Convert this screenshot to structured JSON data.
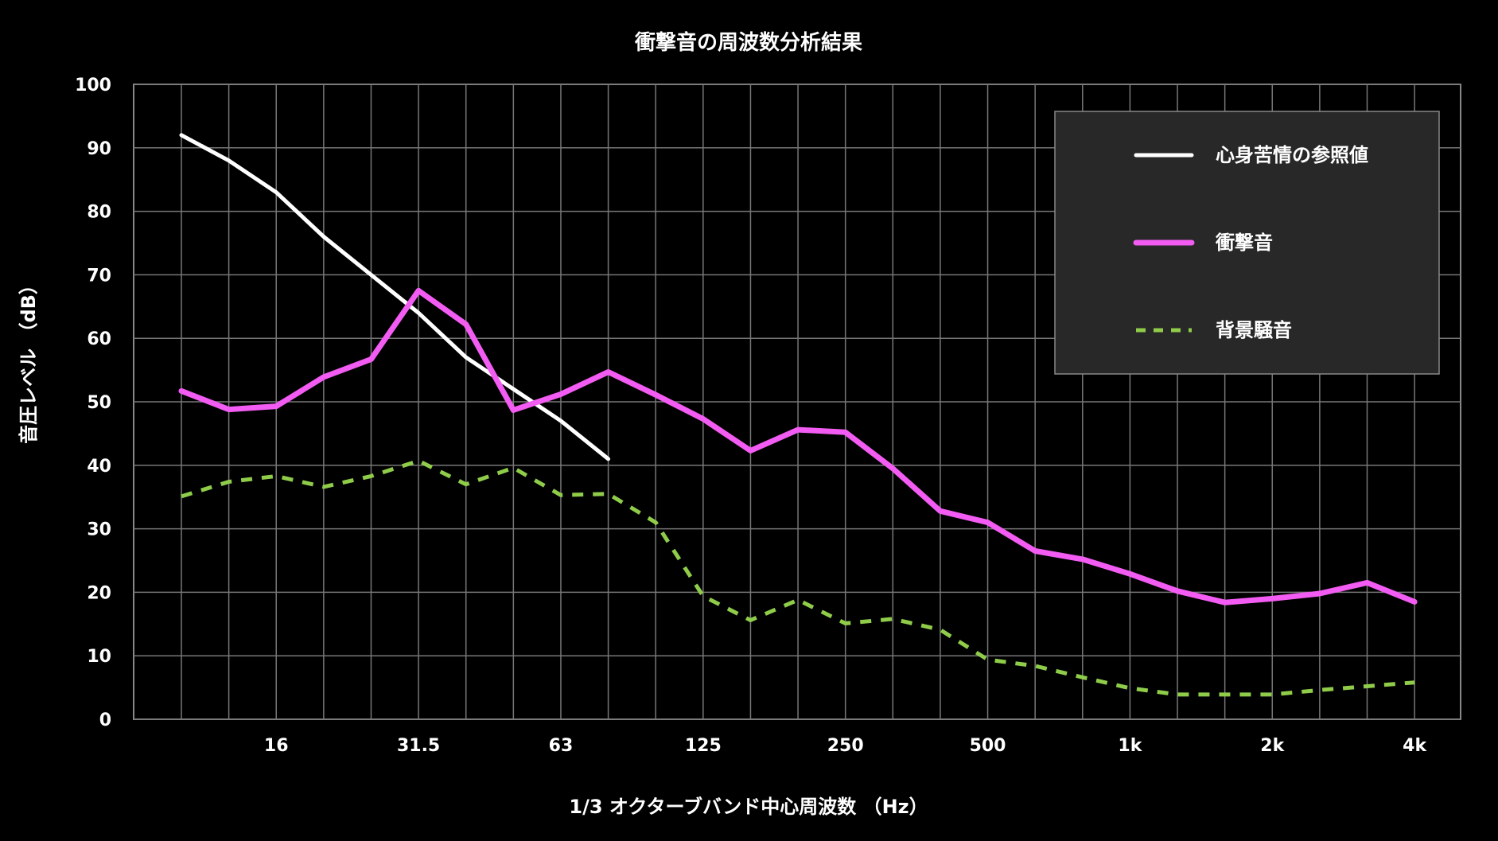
{
  "chart_data": {
    "type": "line",
    "title": "衝撃音の周波数分析結果",
    "xlabel": "1/3 オクターブバンド中心周波数 （Hz）",
    "ylabel": "音圧レベル （dB）",
    "ylim": [
      0,
      100
    ],
    "yticks": [
      "0",
      "10",
      "20",
      "30",
      "40",
      "50",
      "60",
      "70",
      "80",
      "90",
      "100"
    ],
    "x": [
      10,
      12.5,
      16,
      20,
      25,
      31.5,
      40,
      50,
      63,
      80,
      100,
      125,
      160,
      200,
      250,
      315,
      400,
      500,
      630,
      800,
      1000,
      1250,
      1600,
      2000,
      2500,
      3150,
      4000
    ],
    "xticks": [
      {
        "band": 16,
        "label": "16"
      },
      {
        "band": 31.5,
        "label": "31.5"
      },
      {
        "band": 63,
        "label": "63"
      },
      {
        "band": 125,
        "label": "125"
      },
      {
        "band": 250,
        "label": "250"
      },
      {
        "band": 500,
        "label": "500"
      },
      {
        "band": 1000,
        "label": "1k"
      },
      {
        "band": 2000,
        "label": "2k"
      },
      {
        "band": 4000,
        "label": "4k"
      }
    ],
    "grid": true,
    "legend_position": "top-right",
    "series": [
      {
        "name": "心身苦情の参照値",
        "color": "#ffffff",
        "style": "solid",
        "values": [
          92,
          88,
          83,
          76,
          70,
          64,
          57,
          52,
          47,
          41,
          null,
          null,
          null,
          null,
          null,
          null,
          null,
          null,
          null,
          null,
          null,
          null,
          null,
          null,
          null,
          null,
          null
        ]
      },
      {
        "name": "衝撃音",
        "color": "#f25cf2",
        "style": "solid",
        "values": [
          51.7,
          48.8,
          49.3,
          53.9,
          56.7,
          67.5,
          62.2,
          48.7,
          51.2,
          54.7,
          51.1,
          47.3,
          42.3,
          45.6,
          45.2,
          39.5,
          32.8,
          31.0,
          26.5,
          25.2,
          22.9,
          20.2,
          18.4,
          19.0,
          19.8,
          21.5,
          18.5
        ]
      },
      {
        "name": "背景騒音",
        "color": "#8fcc4a",
        "style": "dashed",
        "values": [
          35.1,
          37.4,
          38.3,
          36.6,
          38.3,
          40.7,
          37.0,
          39.6,
          35.3,
          35.5,
          31.0,
          19.4,
          15.6,
          18.8,
          15.1,
          15.8,
          14.1,
          9.4,
          8.4,
          6.6,
          4.9,
          3.9,
          3.9,
          3.9,
          4.6,
          5.2,
          5.8
        ]
      }
    ]
  }
}
